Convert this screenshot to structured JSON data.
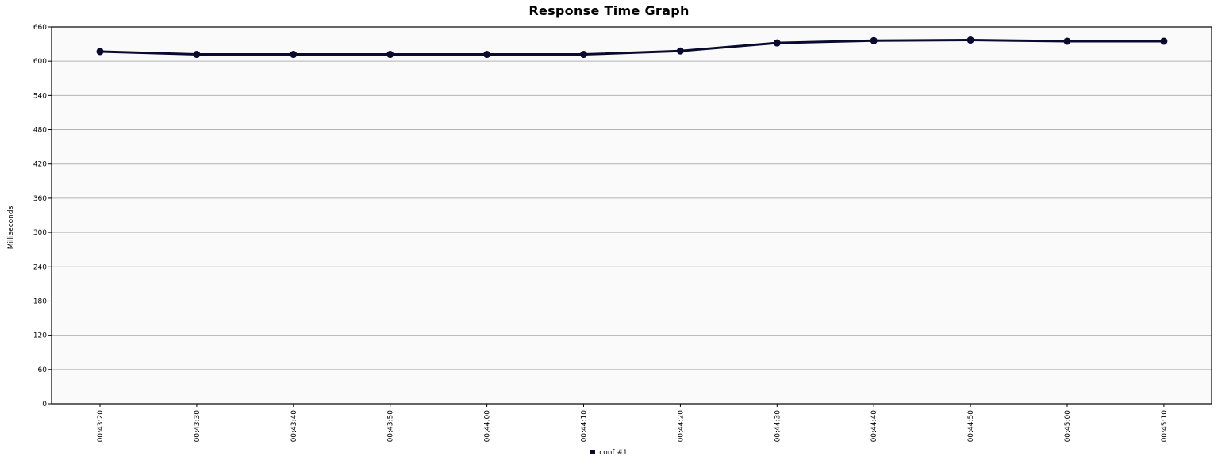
{
  "chart_data": {
    "type": "line",
    "title": "Response Time Graph",
    "xlabel": "",
    "ylabel": "Milliseconds",
    "x": [
      "00:43:20",
      "00:43:30",
      "00:43:40",
      "00:43:50",
      "00:44:00",
      "00:44:10",
      "00:44:20",
      "00:44:30",
      "00:44:40",
      "00:44:50",
      "00:45:00",
      "00:45:10"
    ],
    "series": [
      {
        "name": "conf #1",
        "color": "#0a0a2e",
        "values": [
          617,
          612,
          612,
          612,
          612,
          612,
          618,
          632,
          636,
          637,
          635,
          635
        ]
      }
    ],
    "ylim": [
      0,
      660
    ],
    "yticks": [
      0,
      60,
      120,
      180,
      240,
      300,
      360,
      420,
      480,
      540,
      600,
      660
    ],
    "grid": true,
    "legend": "bottom-center"
  }
}
